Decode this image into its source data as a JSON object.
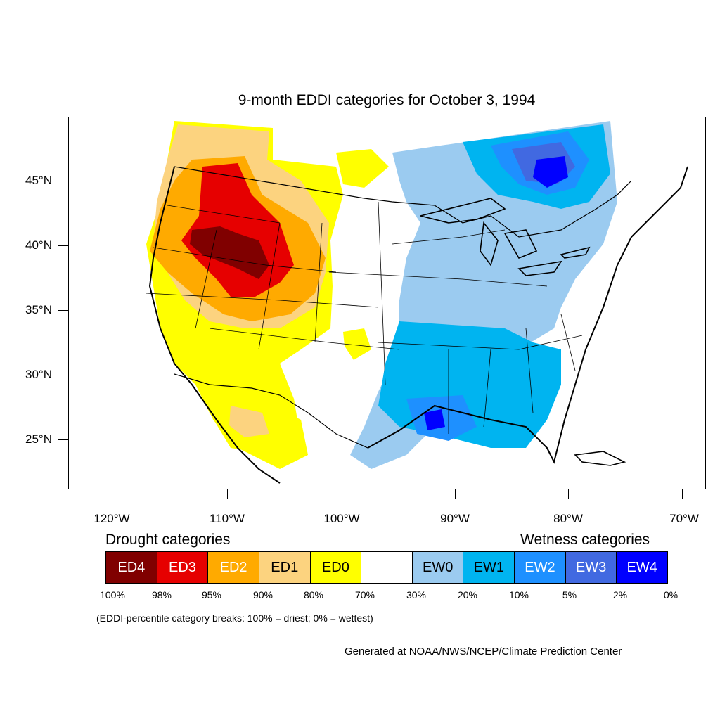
{
  "title": "9-month EDDI categories for October 3, 1994",
  "axes": {
    "lat_labels": [
      "45°N",
      "40°N",
      "35°N",
      "30°N",
      "25°N"
    ],
    "lon_labels": [
      "120°W",
      "110°W",
      "100°W",
      "90°W",
      "80°W",
      "70°W"
    ]
  },
  "legend": {
    "drought_heading": "Drought categories",
    "wetness_heading": "Wetness categories",
    "categories": [
      {
        "label": "ED4",
        "color": "#800000",
        "text_color": "#ffffff"
      },
      {
        "label": "ED3",
        "color": "#e60000",
        "text_color": "#ffffff"
      },
      {
        "label": "ED2",
        "color": "#ffaa00",
        "text_color": "#ffffff"
      },
      {
        "label": "ED1",
        "color": "#fcd37f",
        "text_color": "#000000"
      },
      {
        "label": "ED0",
        "color": "#ffff00",
        "text_color": "#000000"
      },
      {
        "label": "",
        "color": "#ffffff",
        "text_color": "#000000"
      },
      {
        "label": "EW0",
        "color": "#9bcbf0",
        "text_color": "#000000"
      },
      {
        "label": "EW1",
        "color": "#00b4f0",
        "text_color": "#000000"
      },
      {
        "label": "EW2",
        "color": "#1e90ff",
        "text_color": "#ffffff"
      },
      {
        "label": "EW3",
        "color": "#4169e1",
        "text_color": "#ffffff"
      },
      {
        "label": "EW4",
        "color": "#0000ff",
        "text_color": "#ffffff"
      }
    ],
    "percentile_breaks": [
      "100%",
      "98%",
      "95%",
      "90%",
      "80%",
      "70%",
      "30%",
      "20%",
      "10%",
      "5%",
      "2%",
      "0%"
    ]
  },
  "breaks_note": "(EDDI-percentile category breaks: 100% = driest; 0% = wettest)",
  "credit": "Generated at NOAA/NWS/NCEP/Climate Prediction Center"
}
